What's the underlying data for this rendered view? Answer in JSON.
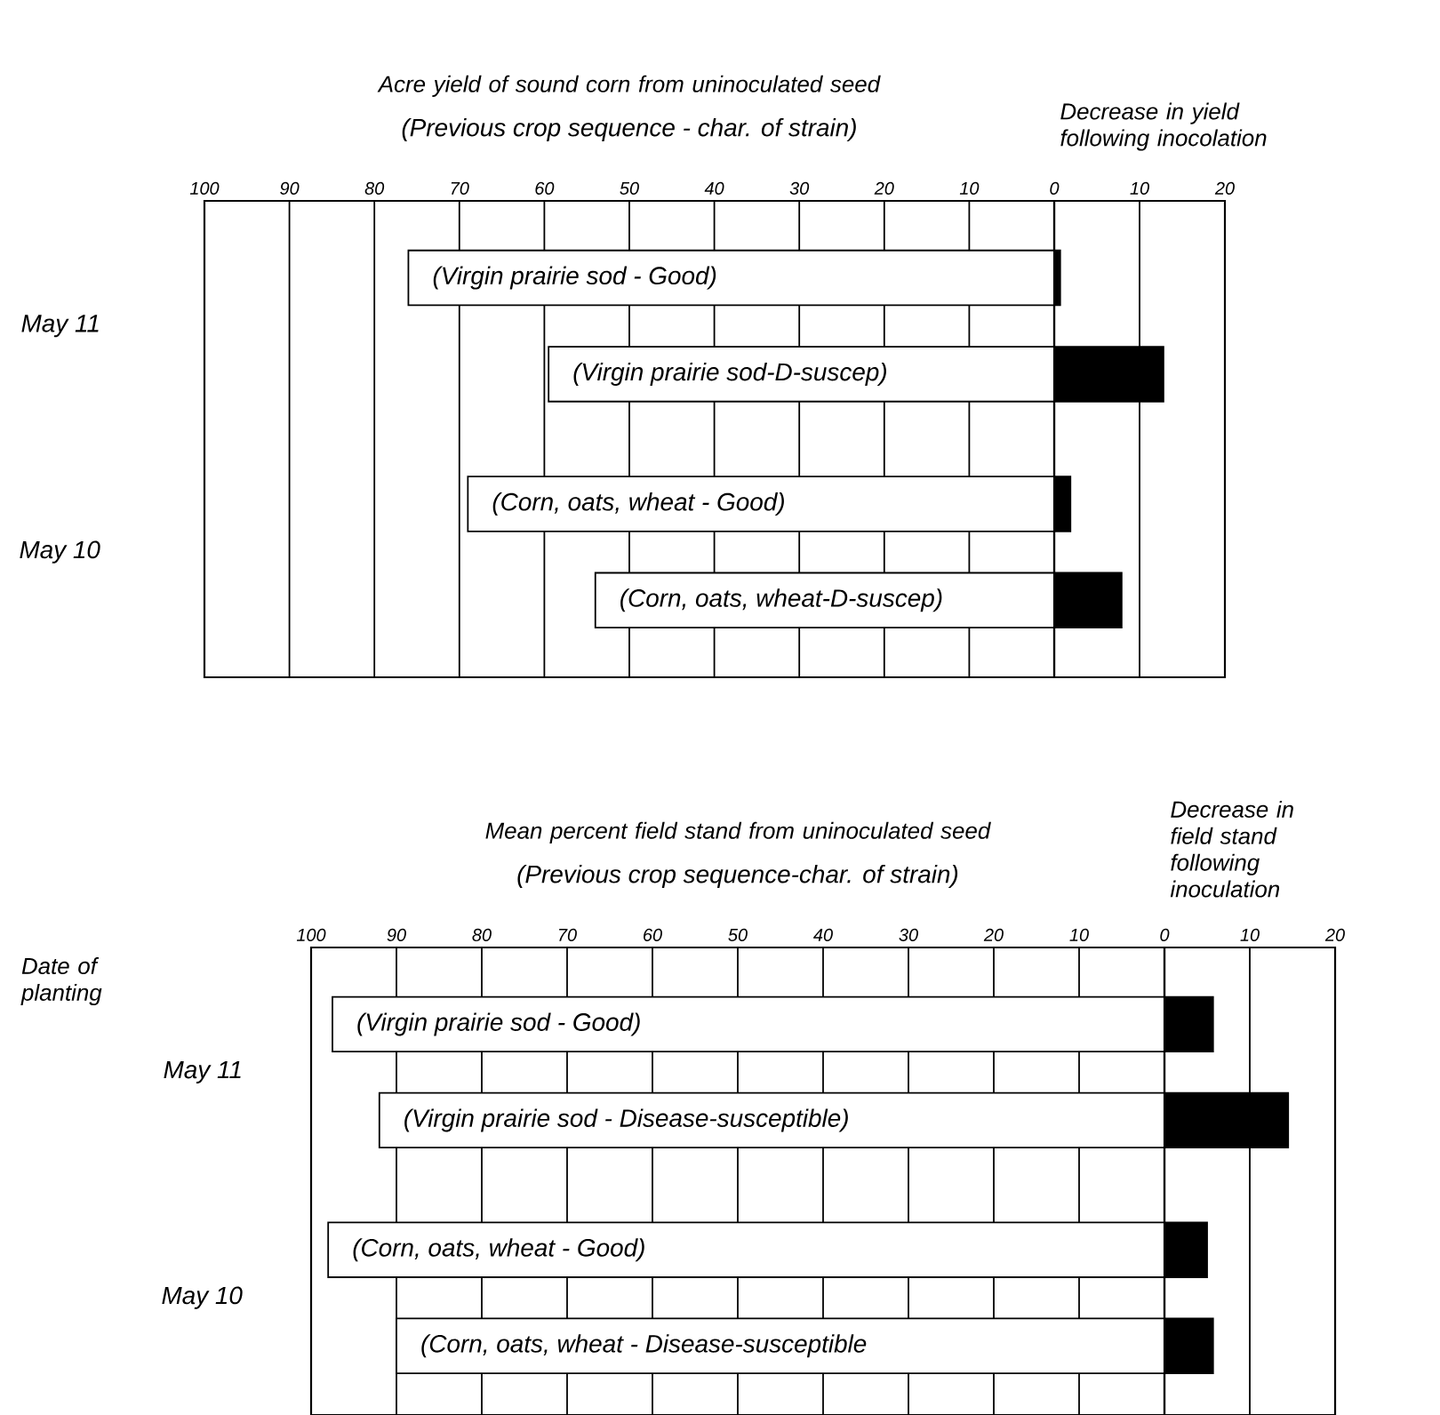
{
  "chart_data": [
    {
      "type": "bar",
      "orientation": "horizontal",
      "title": "Acre yield of sound corn from uninoculated seed",
      "subtitle": "(Previous crop sequence - char. of strain)",
      "categories": [
        "(Virgin prairie sod - Good)",
        "(Virgin prairie sod-D-suscep)",
        "(Corn, oats, wheat - Good)",
        "(Corn, oats, wheat-D-suscep)"
      ],
      "values": [
        76,
        59.5,
        69,
        54
      ],
      "color": "#ffffff",
      "xlim": [
        100,
        0
      ],
      "xticks": [
        100,
        90,
        80,
        70,
        60,
        50,
        40,
        30,
        20,
        10
      ],
      "grid": "x",
      "annotations": [
        "May 11",
        "May 10"
      ]
    },
    {
      "type": "bar",
      "orientation": "horizontal",
      "title": "Decrease in yield following inocolation",
      "categories": [
        null,
        null,
        null,
        null
      ],
      "values": [
        0.7,
        12.8,
        1.9,
        7.9
      ],
      "color": "#000000",
      "xlim": [
        0,
        20
      ],
      "xticks": [
        0,
        10,
        20
      ],
      "grid": "x"
    },
    {
      "type": "bar",
      "orientation": "horizontal",
      "title": "Mean percent field stand from uninoculated seed",
      "subtitle": "(Previous crop sequence-char. of strain)",
      "ylabel": "Date of planting",
      "categories": [
        "(Virgin prairie sod - Good)",
        "(Virgin prairie sod - Disease-susceptible)",
        "(Corn, oats, wheat - Good)",
        "(Corn, oats, wheat - Disease-susceptible"
      ],
      "values": [
        97.5,
        92,
        98,
        90
      ],
      "color": "#ffffff",
      "xlim": [
        100,
        0
      ],
      "xticks": [
        100,
        90,
        80,
        70,
        60,
        50,
        40,
        30,
        20,
        10
      ],
      "grid": "x",
      "annotations": [
        "May 11",
        "May 10"
      ]
    },
    {
      "type": "bar",
      "orientation": "horizontal",
      "title": "Decrease in field stand following inoculation",
      "categories": [
        null,
        null,
        null,
        null
      ],
      "values": [
        5.7,
        14.5,
        5,
        5.7
      ],
      "color": "#000000",
      "xlim": [
        0,
        20
      ],
      "xticks": [
        0,
        10,
        20
      ],
      "grid": "x"
    }
  ]
}
